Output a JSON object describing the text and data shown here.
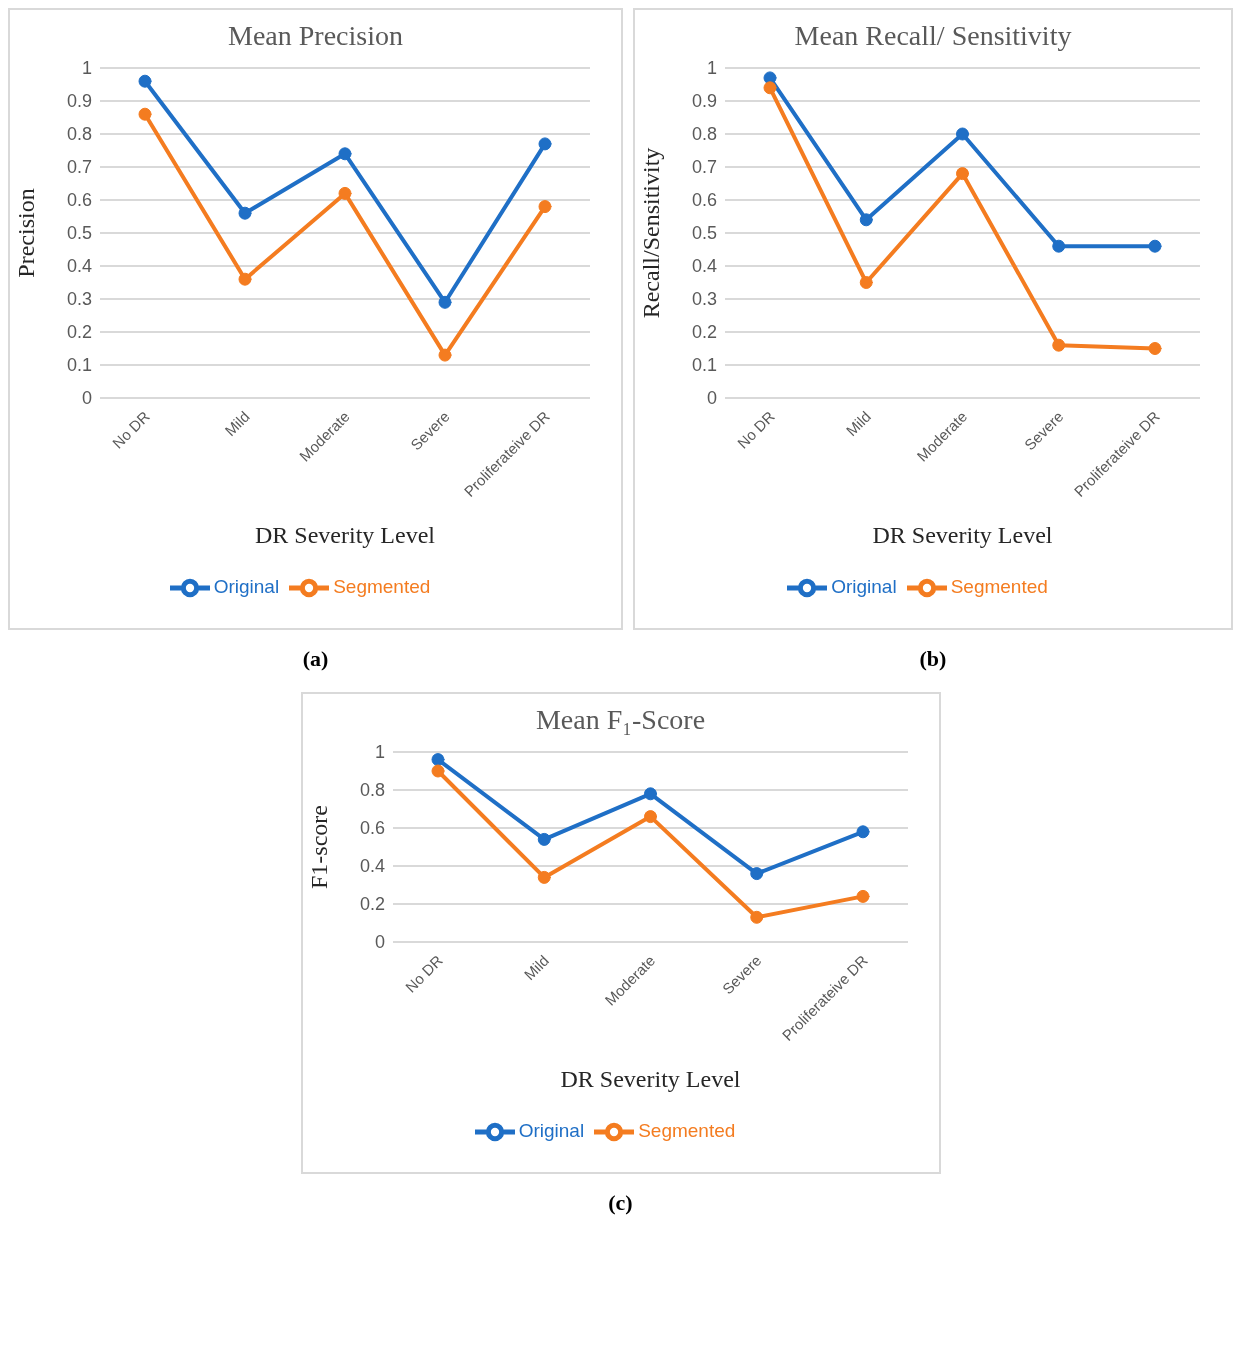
{
  "chart_data": [
    {
      "type": "line",
      "title": "Mean Precision",
      "xlabel": "DR Severity Level",
      "ylabel": "Precision",
      "categories": [
        "No DR",
        "Mild",
        "Moderate",
        "Severe",
        "Proliferateive DR"
      ],
      "series": [
        {
          "name": "Original",
          "color": "#1f6fc6",
          "values": [
            0.96,
            0.56,
            0.74,
            0.29,
            0.77
          ]
        },
        {
          "name": "Segmented",
          "color": "#f47c20",
          "values": [
            0.86,
            0.36,
            0.62,
            0.13,
            0.58
          ]
        }
      ],
      "ylim": [
        0,
        1
      ],
      "yticks": [
        0,
        0.1,
        0.2,
        0.3,
        0.4,
        0.5,
        0.6,
        0.7,
        0.8,
        0.9,
        1
      ],
      "grid": "y",
      "legend": "bottom",
      "marker": "circle",
      "annotations": [
        "(a)"
      ]
    },
    {
      "type": "line",
      "title": "Mean Recall/ Sensitivity",
      "xlabel": "DR Severity Level",
      "ylabel": "Recall/Sensitivity",
      "categories": [
        "No DR",
        "Mild",
        "Moderate",
        "Severe",
        "Proliferateive DR"
      ],
      "series": [
        {
          "name": "Original",
          "color": "#1f6fc6",
          "values": [
            0.97,
            0.54,
            0.8,
            0.46,
            0.46
          ]
        },
        {
          "name": "Segmented",
          "color": "#f47c20",
          "values": [
            0.94,
            0.35,
            0.68,
            0.16,
            0.15
          ]
        }
      ],
      "ylim": [
        0,
        1
      ],
      "yticks": [
        0,
        0.1,
        0.2,
        0.3,
        0.4,
        0.5,
        0.6,
        0.7,
        0.8,
        0.9,
        1
      ],
      "grid": "y",
      "legend": "bottom",
      "marker": "circle",
      "annotations": [
        "(b)"
      ]
    },
    {
      "type": "line",
      "title": "Mean F₁-Score",
      "xlabel": "DR Severity Level",
      "ylabel": "F1-score",
      "categories": [
        "No DR",
        "Mild",
        "Moderate",
        "Severe",
        "Proliferateive DR"
      ],
      "series": [
        {
          "name": "Original",
          "color": "#1f6fc6",
          "values": [
            0.96,
            0.54,
            0.78,
            0.36,
            0.58
          ]
        },
        {
          "name": "Segmented",
          "color": "#f47c20",
          "values": [
            0.9,
            0.34,
            0.66,
            0.13,
            0.24
          ]
        }
      ],
      "ylim": [
        0,
        1
      ],
      "yticks": [
        0,
        0.2,
        0.4,
        0.6,
        0.8,
        1
      ],
      "grid": "y",
      "legend": "bottom",
      "marker": "circle",
      "annotations": [
        "(c)"
      ]
    }
  ]
}
